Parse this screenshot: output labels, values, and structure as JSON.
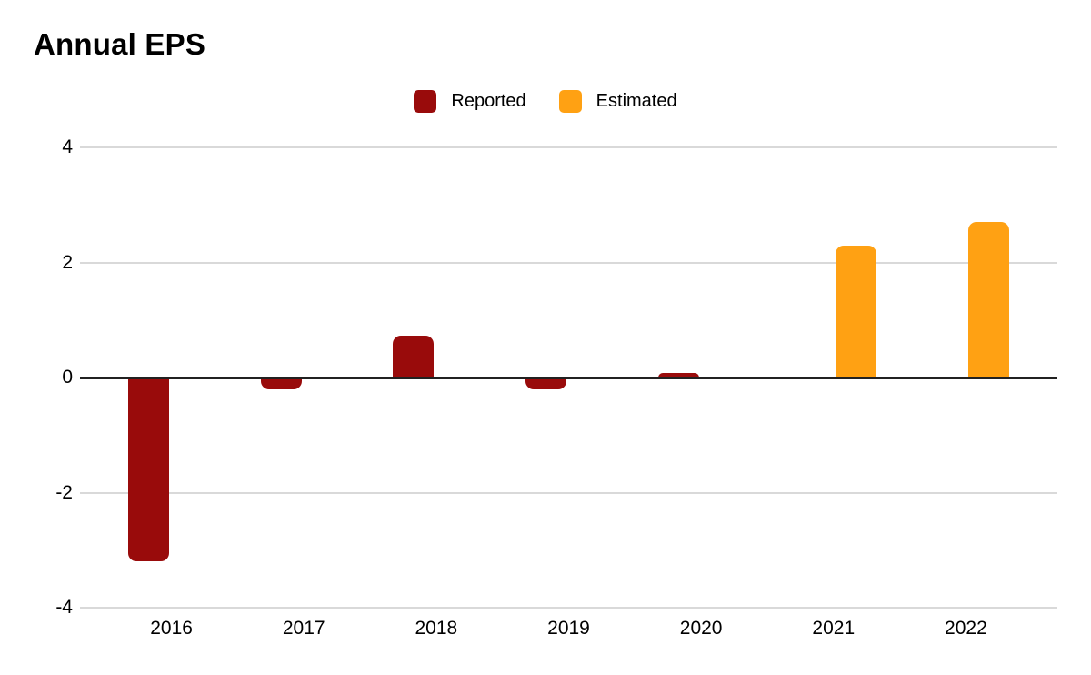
{
  "chart_data": {
    "type": "bar",
    "title": "Annual EPS",
    "categories": [
      "2016",
      "2017",
      "2018",
      "2019",
      "2020",
      "2021",
      "2022"
    ],
    "series": [
      {
        "name": "Reported",
        "color": "#990b0b",
        "values": [
          -3.2,
          -0.2,
          0.72,
          -0.2,
          0.08,
          null,
          null
        ]
      },
      {
        "name": "Estimated",
        "color": "#ffa113",
        "values": [
          null,
          null,
          null,
          null,
          null,
          2.3,
          2.7
        ]
      }
    ],
    "ylim": [
      -4,
      4
    ],
    "yticks": [
      4,
      2,
      0,
      -2,
      -4
    ],
    "grid": true,
    "legend_position": "top-center",
    "zero_line_color": "#212121",
    "gridline_color": "#d9d9d9",
    "background_color": "#ffffff"
  }
}
